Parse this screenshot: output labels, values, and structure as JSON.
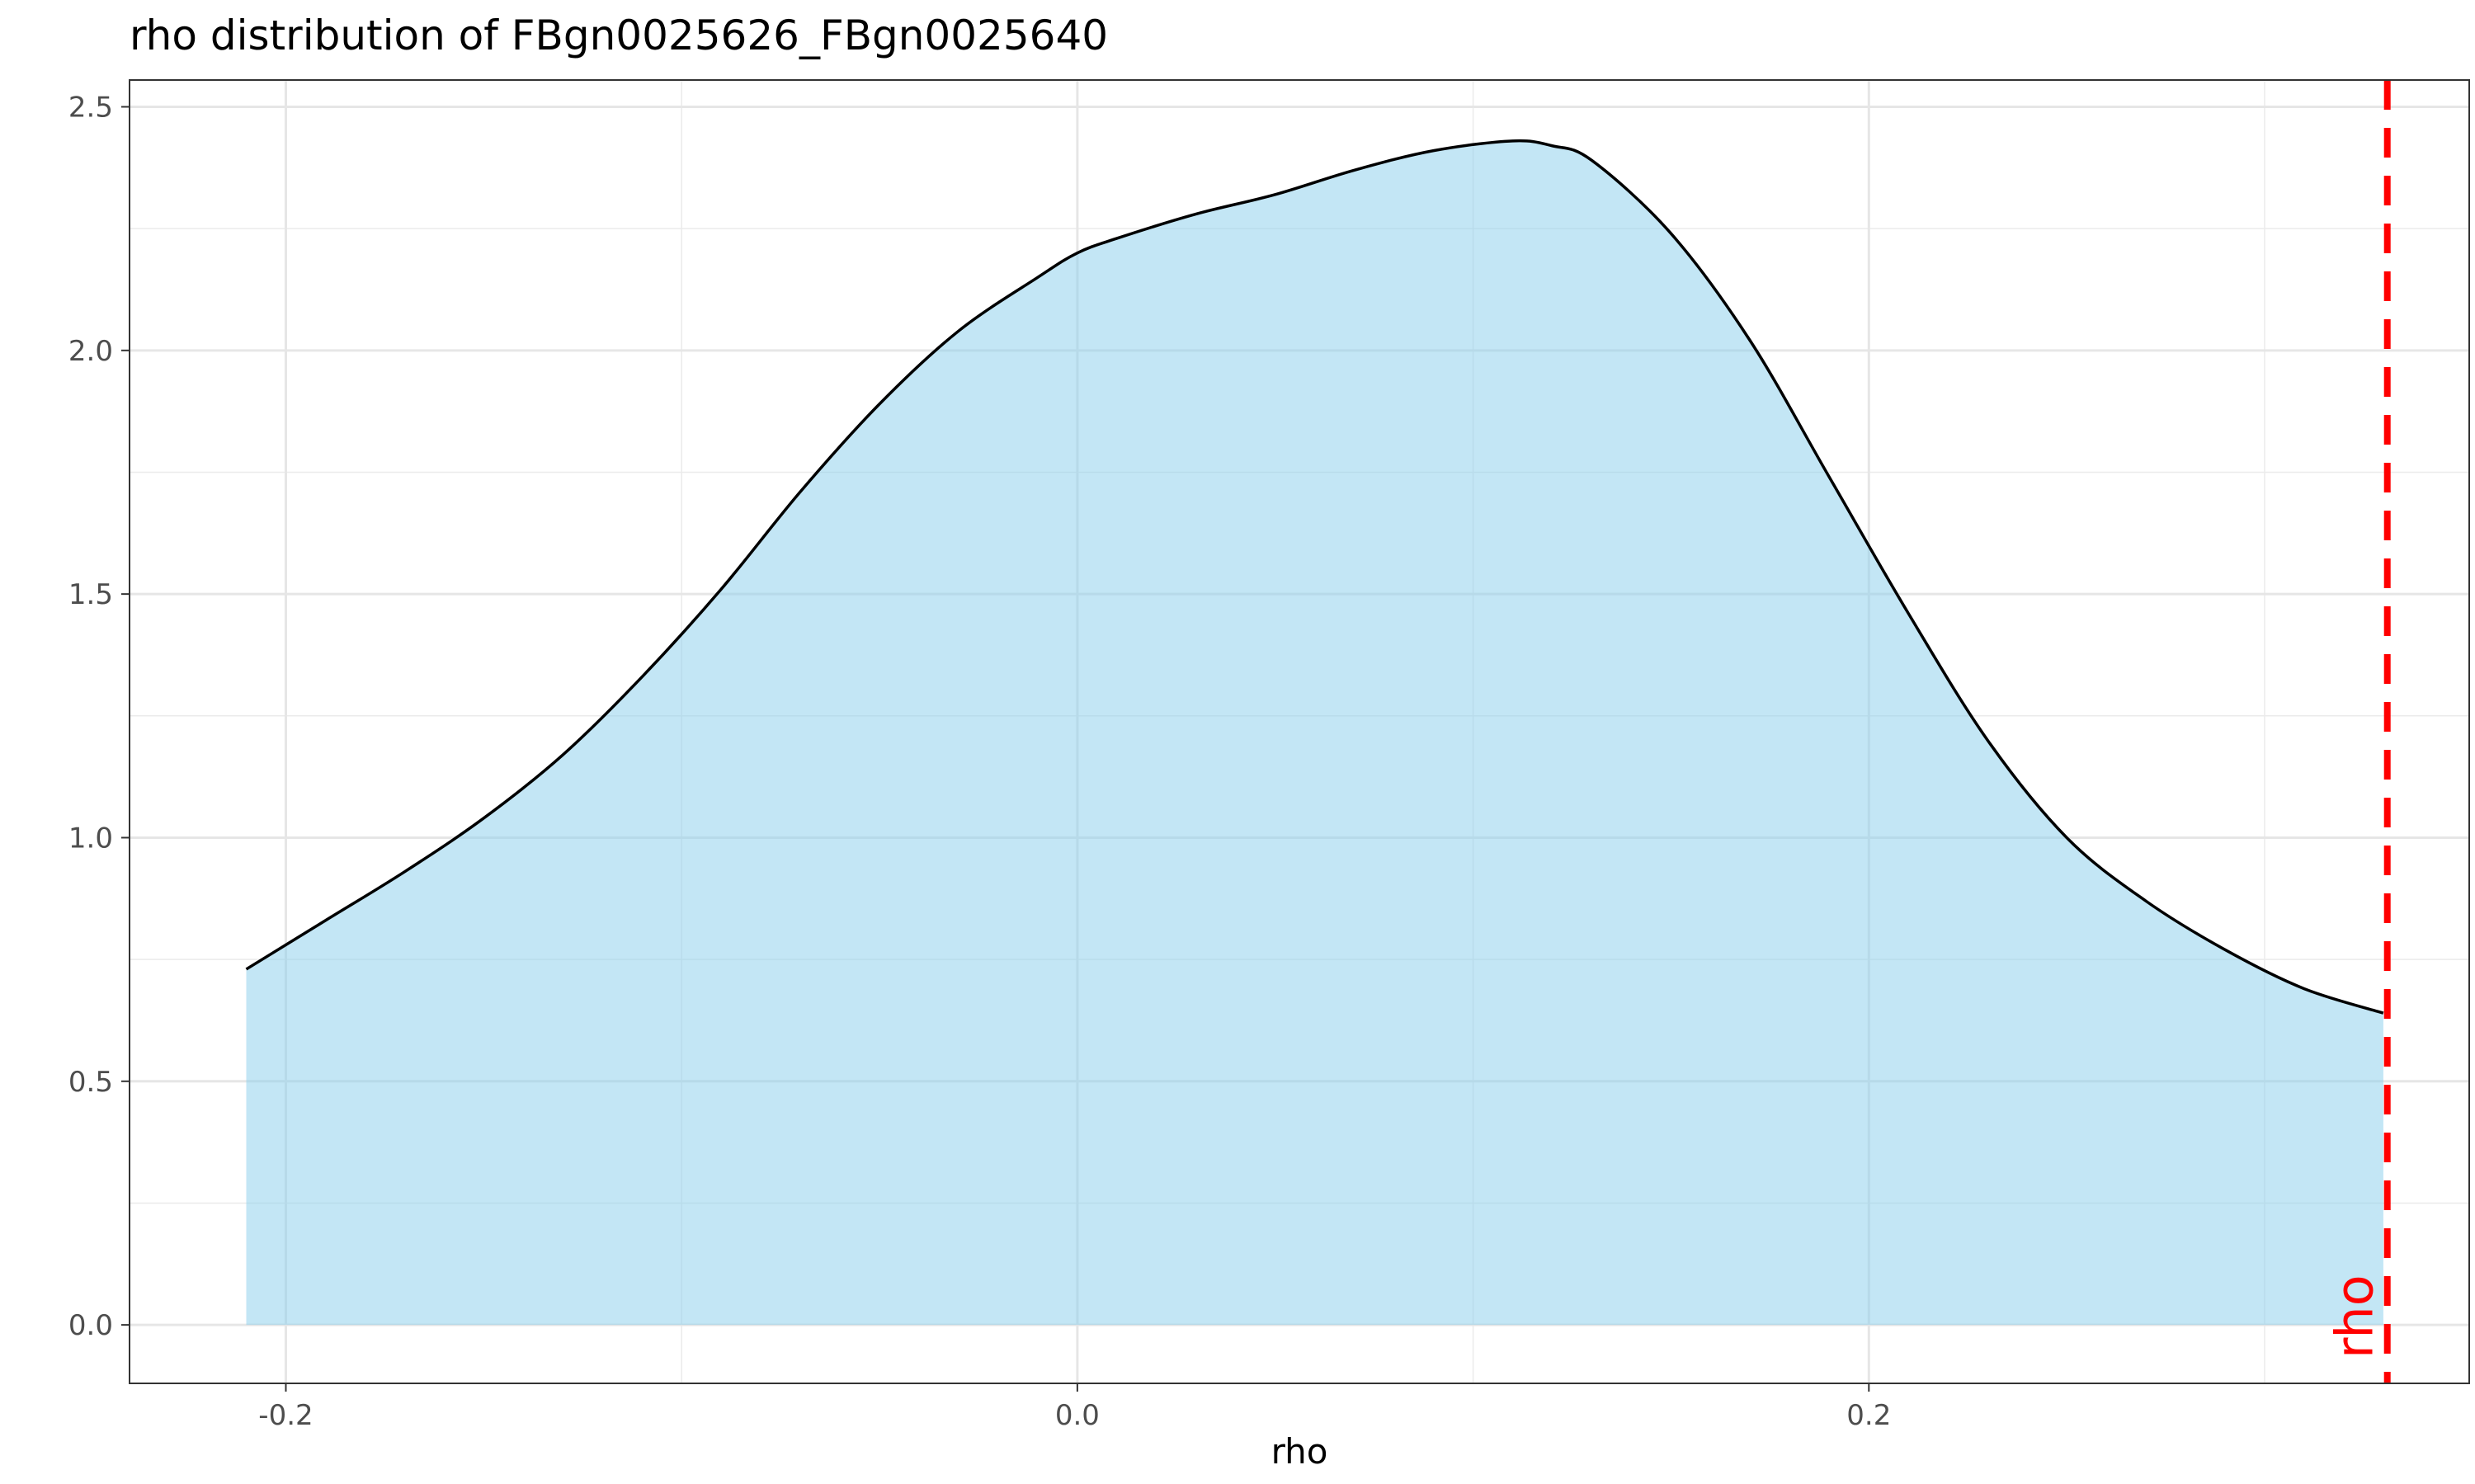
{
  "chart_data": {
    "type": "area",
    "title": "rho distribution of FBgn0025626_FBgn0025640",
    "xlabel": "rho",
    "ylabel": "",
    "xlim": [
      -0.2395,
      0.3517
    ],
    "ylim": [
      -0.12,
      2.555
    ],
    "x_ticks": [
      -0.2,
      0.0,
      0.2
    ],
    "x_tick_labels": [
      "-0.2",
      "0.0",
      "0.2"
    ],
    "y_ticks": [
      0.0,
      0.5,
      1.0,
      1.5,
      2.0,
      2.5
    ],
    "y_tick_labels": [
      "0.0",
      "0.5",
      "1.0",
      "1.5",
      "2.0",
      "2.5"
    ],
    "x_minor_grid": [
      -0.1,
      0.1,
      0.3
    ],
    "y_minor_grid": [
      0.25,
      0.75,
      1.25,
      1.75,
      2.25
    ],
    "grid": true,
    "series": [
      {
        "x": [
          -0.21,
          -0.19,
          -0.17,
          -0.15,
          -0.13,
          -0.11,
          -0.09,
          -0.07,
          -0.05,
          -0.03,
          -0.01,
          0.0,
          0.01,
          0.03,
          0.05,
          0.07,
          0.09,
          0.11,
          0.12,
          0.13,
          0.15,
          0.17,
          0.19,
          0.21,
          0.23,
          0.25,
          0.27,
          0.29,
          0.31,
          0.33
        ],
        "y": [
          0.73,
          0.83,
          0.93,
          1.04,
          1.17,
          1.33,
          1.51,
          1.71,
          1.89,
          2.04,
          2.15,
          2.2,
          2.23,
          2.28,
          2.32,
          2.37,
          2.41,
          2.43,
          2.42,
          2.39,
          2.24,
          2.02,
          1.74,
          1.46,
          1.2,
          1.0,
          0.87,
          0.77,
          0.69,
          0.64
        ],
        "fill_color": "#87ceeb",
        "line_color": "#000000"
      }
    ],
    "reference_line": {
      "x": 0.331,
      "label": "rho",
      "color": "#ff0000",
      "style": "dashed"
    }
  }
}
